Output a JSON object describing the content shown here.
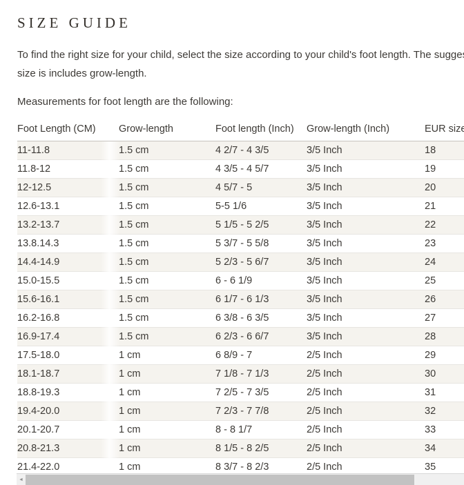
{
  "page": {
    "title": "SIZE GUIDE",
    "intro_line1": "To find the right size for your child, select the size according to your child's foot length. The suggested",
    "intro_line2": "size is includes grow-length.",
    "measurements_label": "Measurements for foot length are the following:"
  },
  "table": {
    "columns": [
      "Foot Length (CM)",
      "Grow-length",
      "Foot length (Inch)",
      "Grow-length (Inch)",
      "EUR size"
    ],
    "rows": [
      [
        "11-11.8",
        "1.5 cm",
        "4 2/7 - 4 3/5",
        "3/5 Inch",
        "18"
      ],
      [
        "11.8-12",
        "1.5 cm",
        "4 3/5 - 4 5/7",
        "3/5 Inch",
        "19"
      ],
      [
        "12-12.5",
        "1.5 cm",
        "4 5/7 - 5",
        "3/5 Inch",
        "20"
      ],
      [
        "12.6-13.1",
        "1.5 cm",
        "5-5 1/6",
        "3/5 Inch",
        "21"
      ],
      [
        "13.2-13.7",
        "1.5 cm",
        "5 1/5 - 5 2/5",
        "3/5 Inch",
        "22"
      ],
      [
        "13.8.14.3",
        "1.5 cm",
        "5 3/7 - 5 5/8",
        "3/5 Inch",
        "23"
      ],
      [
        "14.4-14.9",
        "1.5 cm",
        "5 2/3 - 5 6/7",
        "3/5 Inch",
        "24"
      ],
      [
        "15.0-15.5",
        "1.5 cm",
        "6 - 6 1/9",
        "3/5 Inch",
        "25"
      ],
      [
        "15.6-16.1",
        "1.5 cm",
        "6 1/7 - 6 1/3",
        "3/5 Inch",
        "26"
      ],
      [
        "16.2-16.8",
        "1.5 cm",
        "6 3/8 - 6 3/5",
        "3/5 Inch",
        "27"
      ],
      [
        "16.9-17.4",
        "1.5 cm",
        "6 2/3 - 6 6/7",
        "3/5 Inch",
        "28"
      ],
      [
        "17.5-18.0",
        "1 cm",
        "6 8/9 - 7",
        "2/5 Inch",
        "29"
      ],
      [
        "18.1-18.7",
        "1 cm",
        "7 1/8 - 7 1/3",
        "2/5 Inch",
        "30"
      ],
      [
        "18.8-19.3",
        "1 cm",
        "7 2/5 - 7 3/5",
        "2/5 Inch",
        "31"
      ],
      [
        "19.4-20.0",
        "1 cm",
        "7 2/3 - 7 7/8",
        "2/5 Inch",
        "32"
      ],
      [
        "20.1-20.7",
        "1 cm",
        "8 - 8 1/7",
        "2/5 Inch",
        "33"
      ],
      [
        "20.8-21.3",
        "1 cm",
        "8 1/5 - 8 2/5",
        "2/5 Inch",
        "34"
      ],
      [
        "21.4-22.0",
        "1 cm",
        "8 3/7 - 8 2/3",
        "2/5 Inch",
        "35"
      ]
    ]
  },
  "scrollbar": {
    "orientation": "horizontal",
    "left_arrow_icon": "◄",
    "thumb_color": "#c2c2c2",
    "track_color": "#f0f0f0"
  },
  "colors": {
    "stripe_row": "#f5f3ee",
    "row_border": "#e7e5e1",
    "header_border": "#c7c4bf",
    "text": "#3d3a36",
    "title": "#332f2a"
  }
}
